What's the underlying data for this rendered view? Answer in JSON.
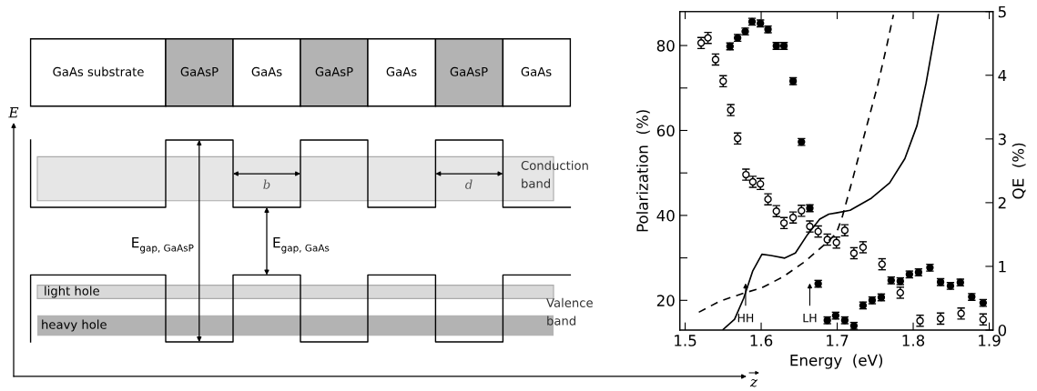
{
  "chart_data": [
    {
      "type": "other",
      "annotations": [
        "GaAs substrate",
        "GaAsP",
        "GaAs",
        "GaAsP",
        "GaAs",
        "GaAsP",
        "GaAs",
        "E",
        "b",
        "d",
        "Conduction\nband",
        "E$_{gap, GaAsP}$",
        "E$_{gap, GaAs}$",
        "light hole",
        "heavy hole",
        "Valence\nband",
        "z"
      ]
    },
    {
      "type": "scatter",
      "xlabel": "Energy  (eV)",
      "ylabel": "Polarization  (%)",
      "y2label": "QE  (%)",
      "xlim": [
        1.493,
        1.905
      ],
      "xticks": [
        1.5,
        1.6,
        1.7,
        1.8,
        1.9
      ],
      "ylim": [
        13,
        88
      ],
      "yticks": [
        20,
        {
          "value": 30,
          "label": null
        },
        40,
        {
          "value": 50,
          "label": null
        },
        60,
        {
          "value": 70,
          "label": null
        },
        80
      ],
      "y2lim": [
        0,
        5
      ],
      "y2ticks": [
        0,
        1,
        2,
        3,
        4,
        5
      ],
      "grid": false,
      "legend": false,
      "series": [
        {
          "type": "scatter",
          "color": "#000000",
          "marker": "circle",
          "x": [
            1.559,
            1.569,
            1.579,
            1.588,
            1.599,
            1.609,
            1.62,
            1.63,
            1.642,
            1.653,
            1.664,
            1.675,
            1.687,
            1.698,
            1.71,
            1.722,
            1.734,
            1.746,
            1.758,
            1.771,
            1.783,
            1.795,
            1.807,
            1.822,
            1.836,
            1.849,
            1.862,
            1.877,
            1.892
          ],
          "values": [
            79.8,
            81.8,
            83.3,
            85.6,
            85.2,
            83.8,
            79.9,
            79.9,
            71.6,
            57.3,
            41.7,
            23.9,
            15.3,
            16.4,
            15.3,
            14.0,
            18.8,
            20.0,
            20.7,
            24.7,
            24.5,
            26.1,
            26.6,
            27.7,
            24.3,
            23.4,
            24.2,
            20.8,
            19.4
          ],
          "errors": [
            0.8,
            0.8,
            0.8,
            0.8,
            0.8,
            0.8,
            0.8,
            0.8,
            0.8,
            0.8,
            0.8,
            0.8,
            0.8,
            0.8,
            0.8,
            0.8,
            0.8,
            0.8,
            0.8,
            0.8,
            0.8,
            0.8,
            0.8,
            0.8,
            0.8,
            0.8,
            0.8,
            0.8,
            0.8
          ]
        },
        {
          "type": "scatter",
          "color": "#000000",
          "marker": "circle",
          "x": [
            1.521,
            1.53,
            1.54,
            1.55,
            1.56,
            1.569,
            1.58,
            1.589,
            1.599,
            1.609,
            1.62,
            1.63,
            1.642,
            1.653,
            1.664,
            1.675,
            1.687,
            1.699,
            1.71,
            1.722,
            1.734,
            1.759,
            1.783,
            1.809,
            1.836,
            1.863,
            1.892
          ],
          "values": [
            80.6,
            81.8,
            76.7,
            71.6,
            64.8,
            58.1,
            49.6,
            47.9,
            47.4,
            43.8,
            41.0,
            38.2,
            39.5,
            41.1,
            37.4,
            36.2,
            34.3,
            33.6,
            36.5,
            31.1,
            32.5,
            28.5,
            21.8,
            15.2,
            15.7,
            16.9,
            15.5
          ],
          "errors": [
            1.3,
            1.3,
            1.3,
            1.3,
            1.3,
            1.3,
            1.3,
            1.3,
            1.3,
            1.3,
            1.3,
            1.3,
            1.3,
            1.3,
            1.3,
            1.3,
            1.3,
            1.3,
            1.3,
            1.3,
            1.3,
            1.3,
            1.3,
            1.3,
            1.3,
            1.3,
            1.3
          ]
        },
        {
          "type": "line",
          "axis": "y2",
          "color": "#000000",
          "line_style": "solid",
          "marker": "none",
          "x": [
            1.55,
            1.565,
            1.577,
            1.589,
            1.601,
            1.613,
            1.631,
            1.645,
            1.661,
            1.677,
            1.689,
            1.699,
            1.717,
            1.745,
            1.769,
            1.789,
            1.805,
            1.817,
            1.827,
            1.833
          ],
          "values": [
            0.01,
            0.17,
            0.5,
            0.93,
            1.19,
            1.17,
            1.13,
            1.21,
            1.5,
            1.74,
            1.82,
            1.84,
            1.88,
            2.07,
            2.31,
            2.69,
            3.21,
            3.88,
            4.55,
            4.95
          ]
        },
        {
          "type": "line",
          "axis": "y2",
          "color": "#000000",
          "line_style": "dashed",
          "marker": "none",
          "x": [
            1.518,
            1.545,
            1.577,
            1.6,
            1.628,
            1.657,
            1.685,
            1.699,
            1.707,
            1.721,
            1.737,
            1.753,
            1.765,
            1.774
          ],
          "values": [
            0.28,
            0.45,
            0.58,
            0.66,
            0.83,
            1.07,
            1.36,
            1.52,
            1.79,
            2.4,
            3.12,
            3.83,
            4.45,
            4.95
          ]
        }
      ],
      "annotations": [
        "HH",
        "LH"
      ]
    }
  ]
}
